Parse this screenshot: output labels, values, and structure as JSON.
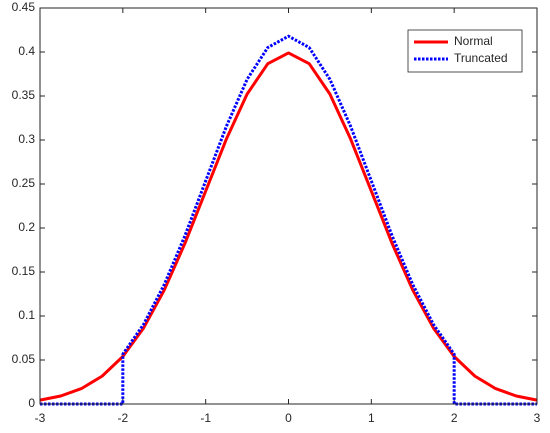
{
  "chart_data": {
    "type": "line",
    "series": [
      {
        "name": "Normal",
        "color": "#ff0000",
        "linestyle": "solid",
        "x": [
          -3,
          -2.75,
          -2.5,
          -2.25,
          -2,
          -1.75,
          -1.5,
          -1.25,
          -1,
          -0.75,
          -0.5,
          -0.25,
          0,
          0.25,
          0.5,
          0.75,
          1,
          1.25,
          1.5,
          1.75,
          2,
          2.25,
          2.5,
          2.75,
          3
        ],
        "values": [
          0.0044,
          0.0091,
          0.0175,
          0.0317,
          0.054,
          0.0863,
          0.1295,
          0.1826,
          0.242,
          0.3011,
          0.3521,
          0.3867,
          0.3989,
          0.3867,
          0.3521,
          0.3011,
          0.242,
          0.1826,
          0.1295,
          0.0863,
          0.054,
          0.0317,
          0.0175,
          0.0091,
          0.0044
        ]
      },
      {
        "name": "Truncated",
        "color": "#0000ff",
        "linestyle": "dotted",
        "x": [
          -3,
          -2,
          -2,
          -1.75,
          -1.5,
          -1.25,
          -1,
          -0.75,
          -0.5,
          -0.25,
          0,
          0.25,
          0.5,
          0.75,
          1,
          1.25,
          1.5,
          1.75,
          2,
          2,
          3
        ],
        "values": [
          0,
          0,
          0.0566,
          0.0904,
          0.1357,
          0.1913,
          0.2535,
          0.3155,
          0.3689,
          0.4051,
          0.418,
          0.4051,
          0.3689,
          0.3155,
          0.2535,
          0.1913,
          0.1357,
          0.0904,
          0.0566,
          0,
          0
        ]
      }
    ],
    "xlim": [
      -3,
      3
    ],
    "xticks": [
      -3,
      -2,
      -1,
      0,
      1,
      2,
      3
    ],
    "ylim": [
      0,
      0.45
    ],
    "yticks": [
      0,
      0.05,
      0.1,
      0.15,
      0.2,
      0.25,
      0.3,
      0.35,
      0.4,
      0.45
    ],
    "legend": "northeast",
    "grid": false
  }
}
